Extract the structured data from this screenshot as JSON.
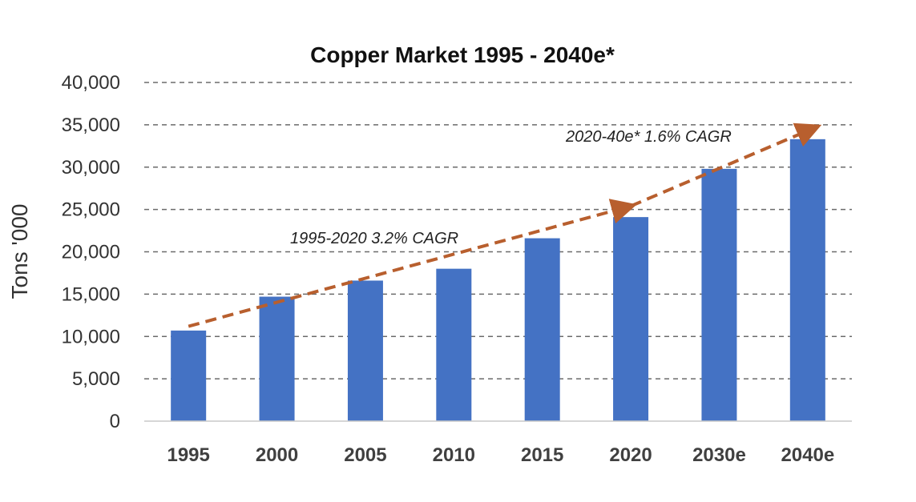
{
  "chart_data": {
    "type": "bar",
    "title": "Copper Market 1995 - 2040e*",
    "xlabel": "",
    "ylabel": "Tons '000",
    "categories": [
      "1995",
      "2000",
      "2005",
      "2010",
      "2015",
      "2020",
      "2030e",
      "2040e"
    ],
    "values": [
      10700,
      14700,
      16600,
      18000,
      21600,
      24100,
      29800,
      33300
    ],
    "ylim": [
      0,
      40000
    ],
    "yticks": [
      "0",
      "5,000",
      "10,000",
      "15,000",
      "20,000",
      "25,000",
      "30,000",
      "35,000",
      "40,000"
    ],
    "grid": "dashed horizontal",
    "bar_color": "#4472C4",
    "trend_color": "#B85F2E",
    "annotations": [
      {
        "text": "1995-2020  3.2% CAGR",
        "from": [
          "1995",
          11200
        ],
        "to": [
          "2020",
          25400
        ]
      },
      {
        "text": "2020-40e*  1.6% CAGR",
        "from": [
          "2020",
          25400
        ],
        "to": [
          "2040e",
          34700
        ]
      }
    ]
  }
}
